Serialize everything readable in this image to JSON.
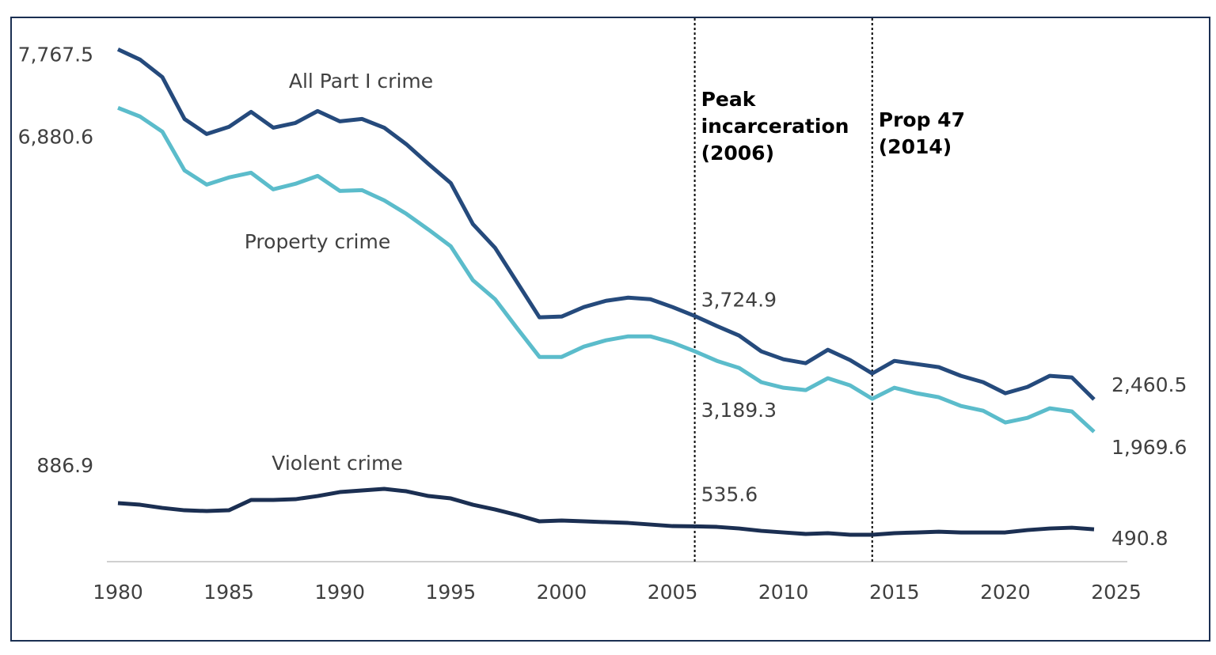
{
  "chart_data": {
    "type": "line",
    "x": [
      1980,
      1981,
      1982,
      1983,
      1984,
      1985,
      1986,
      1987,
      1988,
      1989,
      1990,
      1991,
      1992,
      1993,
      1994,
      1995,
      1996,
      1997,
      1998,
      1999,
      2000,
      2001,
      2002,
      2003,
      2004,
      2005,
      2006,
      2007,
      2008,
      2009,
      2010,
      2011,
      2012,
      2013,
      2014,
      2015,
      2016,
      2017,
      2018,
      2019,
      2020,
      2021,
      2022,
      2023,
      2024
    ],
    "xlim": [
      1980,
      2025
    ],
    "xticks": [
      1980,
      1985,
      1990,
      1995,
      2000,
      2005,
      2010,
      2015,
      2020,
      2025
    ],
    "ylim": [
      0,
      8000
    ],
    "series": [
      {
        "name": "All Part I crime",
        "color": "#254a7c",
        "values": [
          7767.5,
          7611,
          7347,
          6712,
          6484,
          6592,
          6820,
          6580,
          6652,
          6832,
          6676,
          6712,
          6580,
          6329,
          6029,
          5741,
          5118,
          4758,
          4231,
          3704,
          3716,
          3860,
          3955,
          4003,
          3979,
          3860,
          3724.9,
          3572,
          3428,
          3188,
          3068,
          3009,
          3212,
          3057,
          2853,
          3044,
          2996,
          2949,
          2817,
          2721,
          2553,
          2649,
          2817,
          2793,
          2460.5
        ],
        "value_labels": [
          "7,767.5",
          null,
          null,
          null,
          null,
          null,
          null,
          null,
          null,
          null,
          null,
          null,
          null,
          null,
          null,
          null,
          null,
          null,
          null,
          null,
          null,
          null,
          null,
          null,
          null,
          null,
          "3,724.9",
          null,
          null,
          null,
          null,
          null,
          null,
          null,
          null,
          null,
          null,
          null,
          null,
          null,
          null,
          null,
          null,
          null,
          "2,460.5"
        ]
      },
      {
        "name": "Property crime",
        "color": "#5bbccb",
        "values": [
          6880.6,
          6748,
          6520,
          5933,
          5717,
          5825,
          5897,
          5645,
          5729,
          5849,
          5621,
          5633,
          5478,
          5274,
          5034,
          4782,
          4267,
          3979,
          3536,
          3104,
          3104,
          3260,
          3356,
          3416,
          3416,
          3320,
          3189.3,
          3044,
          2937,
          2721,
          2637,
          2601,
          2781,
          2673,
          2469,
          2637,
          2553,
          2493,
          2361,
          2289,
          2110,
          2181,
          2325,
          2277,
          1969.6
        ],
        "value_labels": [
          "6,880.6",
          null,
          null,
          null,
          null,
          null,
          null,
          null,
          null,
          null,
          null,
          null,
          null,
          null,
          null,
          null,
          null,
          null,
          null,
          null,
          null,
          null,
          null,
          null,
          null,
          null,
          "3,189.3",
          null,
          null,
          null,
          null,
          null,
          null,
          null,
          null,
          null,
          null,
          null,
          null,
          null,
          null,
          null,
          null,
          null,
          "1,969.6"
        ]
      },
      {
        "name": "Violent crime",
        "color": "#1b2f52",
        "values": [
          886.9,
          863,
          815,
          779,
          767,
          779,
          935,
          935,
          947,
          995,
          1055,
          1079,
          1103,
          1067,
          995,
          959,
          863,
          791,
          707,
          611,
          623,
          611,
          599,
          587,
          563,
          539,
          535.6,
          527,
          503,
          467,
          443,
          420,
          432,
          408,
          408,
          432,
          443,
          455,
          443,
          443,
          443,
          479,
          503,
          515,
          490.8
        ]
      }
    ],
    "annotations": [
      {
        "x": 2006,
        "lines": [
          "Peak",
          "incarceration",
          "(2006)"
        ]
      },
      {
        "x": 2014,
        "lines": [
          "Prop 47",
          "(2014)"
        ]
      }
    ]
  }
}
